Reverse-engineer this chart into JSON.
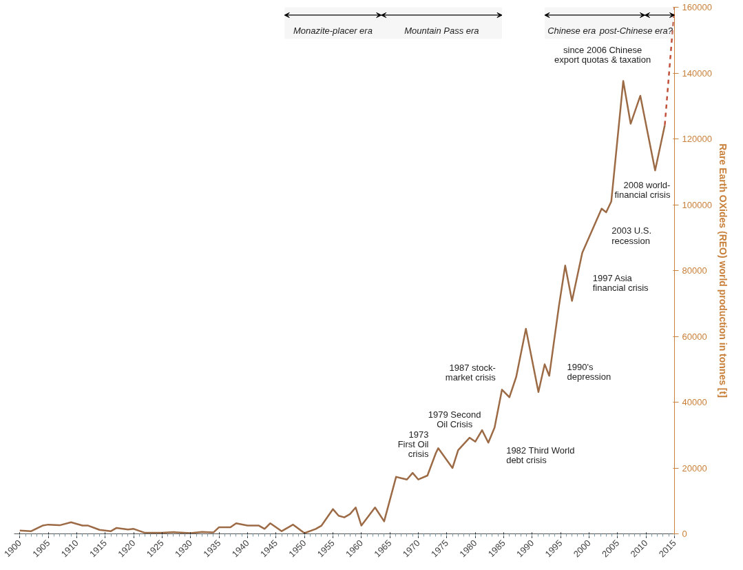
{
  "chart_data": {
    "type": "line",
    "ylabel": "Rare Earth OXides (REO) world production in tonnes [t]",
    "xlim": [
      1899,
      2015
    ],
    "ylim": [
      0,
      160000
    ],
    "xticks": [
      1900,
      1905,
      1910,
      1915,
      1920,
      1925,
      1930,
      1935,
      1940,
      1945,
      1950,
      1955,
      1960,
      1965,
      1970,
      1975,
      1980,
      1985,
      1990,
      1995,
      2000,
      2005,
      2010,
      2015
    ],
    "yticks": [
      0,
      20000,
      40000,
      60000,
      80000,
      100000,
      120000,
      140000,
      160000
    ],
    "grid": false,
    "series": [
      {
        "color": "#9c6a45",
        "line_style": "solid",
        "x": [
          1900,
          1902,
          1904,
          1905,
          1907,
          1909,
          1911,
          1912,
          1914,
          1916,
          1917,
          1919,
          1920,
          1922,
          1925,
          1927,
          1930,
          1932,
          1934,
          1935,
          1937,
          1938,
          1940,
          1942,
          1943,
          1944,
          1946,
          1948,
          1950,
          1952,
          1953,
          1955,
          1956,
          1957,
          1958,
          1959,
          1960,
          1962.4,
          1964,
          1966.1,
          1967,
          1968,
          1969,
          1970,
          1971.6,
          1973.1,
          1973.5,
          1976,
          1977,
          1979,
          1980,
          1981.2,
          1982.3,
          1983.4,
          1984.7,
          1986,
          1987.2,
          1988.9,
          1991.1,
          1992.2,
          1993,
          1994.7,
          1995.8,
          1997,
          1998.8,
          2002.2,
          2003,
          2003.9,
          2006,
          2007.3,
          2009,
          2011.6,
          2013.3
        ],
        "values": [
          1000,
          800,
          2500,
          2800,
          2600,
          3500,
          2500,
          2500,
          1200,
          800,
          1800,
          1300,
          1500,
          300,
          300,
          500,
          200,
          600,
          400,
          2000,
          2000,
          3200,
          2500,
          2500,
          1500,
          3200,
          800,
          2800,
          200,
          1500,
          2500,
          7500,
          5500,
          5000,
          6000,
          8000,
          2500,
          8000,
          3800,
          17300,
          16900,
          16500,
          18500,
          16500,
          17700,
          24600,
          26000,
          20000,
          25400,
          29200,
          28000,
          31500,
          27700,
          32300,
          43800,
          41500,
          47700,
          62300,
          43100,
          51500,
          48000,
          69200,
          81500,
          70800,
          85400,
          98800,
          97700,
          101000,
          137600,
          124600,
          133100,
          110400,
          124200
        ]
      },
      {
        "color": "#c0503a",
        "line_style": "dashed",
        "x": [
          2013.3,
          2015
        ],
        "values": [
          124200,
          160000
        ]
      }
    ],
    "bands": [
      {
        "axis": "x",
        "from": 1946.5,
        "to": 1963.5,
        "label": "Monazite-placer era"
      },
      {
        "axis": "x",
        "from": 1963.5,
        "to": 1984.7,
        "label": "Mountain Pass era"
      },
      {
        "axis": "x",
        "from": 1992.2,
        "to": 2009.8,
        "label": "Chinese era"
      },
      {
        "axis": "x",
        "from": 2009.8,
        "to": 2015,
        "label": "post-Chinese era?"
      }
    ],
    "annotations": [
      {
        "text": "since 2006 Chinese\nexport quotas & taxation",
        "x": 2006,
        "y": 137600
      },
      {
        "text": "2008 world-\nfinancial crisis",
        "x": 2011.6,
        "y": 110400
      },
      {
        "text": "2003 U.S.\nrecession",
        "x": 2003,
        "y": 97700
      },
      {
        "text": "1997 Asia\nfinancial crisis",
        "x": 1997,
        "y": 70800
      },
      {
        "text": "1990's\ndepression",
        "x": 1993,
        "y": 48000
      },
      {
        "text": "1987 stock-\nmarket crisis",
        "x": 1986,
        "y": 41500
      },
      {
        "text": "1979 Second\nOil Crisis",
        "x": 1980,
        "y": 28000
      },
      {
        "text": "1973\nFirst Oil\ncrisis",
        "x": 1973.5,
        "y": 26000
      },
      {
        "text": "1982 Third World\ndebt crisis",
        "x": 1982.3,
        "y": 27700
      }
    ]
  }
}
